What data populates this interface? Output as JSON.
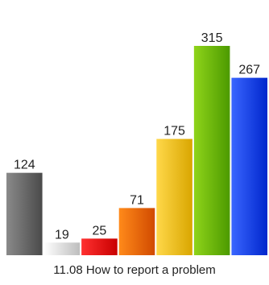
{
  "chart_data": {
    "type": "bar",
    "title": "11.08 How to report a problem",
    "xlabel": "",
    "ylabel": "",
    "ylim": [
      0,
      315
    ],
    "grid": false,
    "legend": "none",
    "categories": [
      "",
      "",
      "",
      "",
      "",
      "",
      ""
    ],
    "values": [
      124,
      19,
      25,
      71,
      175,
      315,
      267
    ],
    "value_labels": [
      "124",
      "19",
      "25",
      "71",
      "175",
      "315",
      "267"
    ],
    "colors": [
      [
        "#8a8a8a",
        "#4a4a4a"
      ],
      [
        "#ffffff",
        "#bdbdbd"
      ],
      [
        "#ff3030",
        "#c80000"
      ],
      [
        "#ff8a1a",
        "#d14a00"
      ],
      [
        "#ffd84a",
        "#d9a600"
      ],
      [
        "#8fd41a",
        "#4c9a00"
      ],
      [
        "#3a66ff",
        "#0026cc"
      ]
    ]
  }
}
